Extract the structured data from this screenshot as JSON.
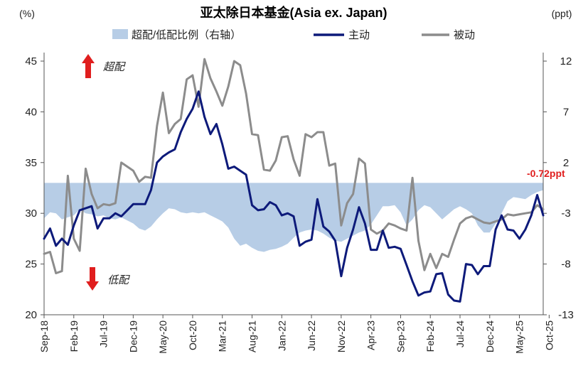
{
  "chart_data": {
    "type": "line",
    "title": "亚太除日本基金(Asia ex. Japan)",
    "left_unit": "(%)",
    "right_unit": "(ppt)",
    "y_left": {
      "lim": [
        20,
        45
      ],
      "ticks": [
        20,
        25,
        30,
        35,
        40,
        45
      ]
    },
    "y_right": {
      "lim": [
        -13,
        12
      ],
      "ticks": [
        -13,
        -8,
        -3,
        2,
        7,
        12
      ]
    },
    "x_labels": [
      "Sep-18",
      "Feb-19",
      "Jul-19",
      "Dec-19",
      "May-20",
      "Oct-20",
      "Mar-21",
      "Aug-21",
      "Jan-22",
      "Jun-22",
      "Nov-22",
      "Apr-23",
      "Sep-23",
      "Feb-24",
      "Jul-24",
      "Dec-24",
      "May-25",
      "Oct-25"
    ],
    "legend": [
      "超配/低配比例（右轴）",
      "主动",
      "被动"
    ],
    "annotations": {
      "overweight": "超配",
      "underweight": "低配",
      "last_value": "-0.72ppt"
    },
    "colors": {
      "area": "#b7cde6",
      "active": "#0d1a7a",
      "passive": "#8c8c8c",
      "arrow": "#e01e1e"
    },
    "series": [
      {
        "name": "主动",
        "axis": "left",
        "values": [
          27.5,
          28.5,
          26.8,
          27.5,
          26.9,
          28.8,
          30.3,
          30.5,
          30.7,
          28.5,
          29.5,
          29.5,
          30.0,
          29.7,
          30.3,
          30.9,
          30.9,
          30.9,
          32.3,
          35.0,
          35.6,
          36.0,
          36.3,
          38.0,
          39.3,
          40.3,
          42.0,
          39.5,
          37.8,
          38.8,
          36.8,
          34.4,
          34.6,
          34.2,
          33.8,
          30.8,
          30.3,
          30.4,
          31.1,
          30.8,
          29.8,
          30.0,
          29.7,
          26.8,
          27.2,
          27.4,
          31.4,
          28.7,
          28.2,
          27.3,
          23.8,
          26.6,
          28.4,
          30.6,
          29.0,
          26.4,
          26.4,
          28.3,
          26.6,
          26.7,
          26.5,
          24.9,
          23.3,
          21.9,
          22.2,
          22.3,
          24.0,
          24.1,
          22.0,
          21.4,
          21.3,
          25.0,
          24.9,
          24.0,
          24.8,
          24.8,
          28.4,
          29.8,
          28.4,
          28.3,
          27.5,
          28.4,
          29.8,
          31.8,
          29.8
        ]
      },
      {
        "name": "被动",
        "axis": "left",
        "values": [
          26.0,
          26.2,
          24.1,
          24.3,
          33.7,
          27.5,
          26.3,
          34.4,
          31.9,
          30.5,
          30.9,
          30.8,
          31.0,
          35.0,
          34.6,
          34.2,
          33.1,
          33.6,
          33.5,
          38.6,
          41.9,
          37.9,
          38.8,
          39.3,
          43.2,
          43.6,
          40.5,
          45.2,
          43.3,
          42.0,
          40.6,
          42.5,
          45.0,
          44.6,
          41.8,
          37.8,
          37.7,
          34.3,
          34.2,
          35.2,
          37.5,
          37.6,
          35.3,
          33.7,
          37.8,
          37.5,
          38.0,
          38.0,
          34.7,
          34.9,
          28.8,
          31.0,
          31.9,
          35.4,
          34.9,
          28.4,
          28.0,
          28.3,
          29.0,
          28.8,
          28.5,
          28.3,
          33.5,
          27.3,
          24.4,
          26.0,
          24.6,
          26.0,
          25.7,
          27.4,
          29.0,
          29.5,
          29.7,
          29.4,
          29.1,
          29.0,
          29.2,
          29.4,
          29.9,
          29.8,
          29.9,
          30.0,
          30.1,
          30.8,
          30.4
        ]
      },
      {
        "name": "超配/低配比例（右轴）",
        "axis": "right",
        "values": [
          -3.5,
          -2.9,
          -3.0,
          -3.6,
          -3.4,
          -3.2,
          -2.6,
          -3.0,
          -3.1,
          -3.3,
          -3.2,
          -3.5,
          -3.6,
          -3.4,
          -3.7,
          -4.0,
          -4.5,
          -4.7,
          -4.3,
          -3.6,
          -3.0,
          -2.5,
          -2.6,
          -2.9,
          -3.0,
          -2.9,
          -3.0,
          -2.9,
          -3.2,
          -3.5,
          -3.8,
          -4.4,
          -5.5,
          -6.2,
          -6.0,
          -6.4,
          -6.7,
          -6.8,
          -6.6,
          -6.5,
          -6.3,
          -6.0,
          -5.4,
          -4.9,
          -4.7,
          -4.6,
          -4.7,
          -5.0,
          -5.4,
          -5.7,
          -5.8,
          -5.5,
          -5.2,
          -4.9,
          -4.7,
          -4.1,
          -3.2,
          -2.3,
          -2.3,
          -2.2,
          -2.9,
          -4.2,
          -3.6,
          -2.7,
          -2.2,
          -2.4,
          -3.0,
          -3.6,
          -3.1,
          -2.6,
          -2.3,
          -2.6,
          -3.0,
          -4.2,
          -4.9,
          -4.9,
          -4.0,
          -3.0,
          -1.8,
          -1.4,
          -1.5,
          -1.6,
          -1.2,
          -0.9,
          -0.72
        ]
      }
    ]
  }
}
